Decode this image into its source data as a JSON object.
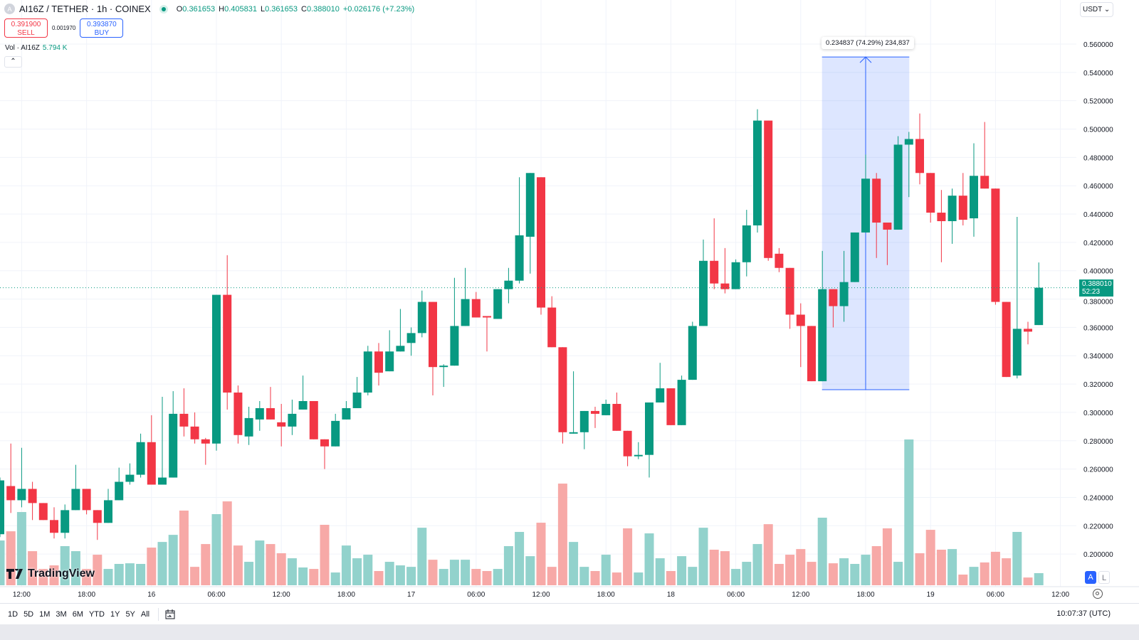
{
  "header": {
    "logo_letter": "A",
    "title": "AI16Z / TETHER · 1h · COINEX",
    "o_label": "O",
    "o": "0.361653",
    "h_label": "H",
    "h": "0.405831",
    "l_label": "L",
    "l": "0.361653",
    "c_label": "C",
    "c": "0.388010",
    "change": "+0.026176 (+7.23%)"
  },
  "trade": {
    "sell_price": "0.391900",
    "sell_label": "SELL",
    "spread": "0.001970",
    "buy_price": "0.393870",
    "buy_label": "BUY"
  },
  "volume_legend": {
    "label": "Vol · AI16Z",
    "value": "5.794 K"
  },
  "collapse_icon": "chevron-up-icon",
  "collapse_glyph": "⌃",
  "currency": {
    "value": "USDT",
    "glyph": "⌄"
  },
  "price_label": {
    "value": "0.388010",
    "countdown": "52:23"
  },
  "measure": {
    "text": "0.234837 (74.29%) 234,837"
  },
  "brand": "TradingView",
  "scale_buttons": {
    "auto": "A",
    "log": "L"
  },
  "ranges": [
    "1D",
    "5D",
    "1M",
    "3M",
    "6M",
    "YTD",
    "1Y",
    "5Y",
    "All"
  ],
  "clock": "10:07:37 (UTC)",
  "colors": {
    "up": "#089981",
    "down": "#f23645",
    "vol_up": "#92d2cc",
    "vol_down": "#f7a9a7",
    "measure": "#2962ff"
  },
  "chart_data": {
    "type": "candlestick",
    "title": "AI16Z / TETHER · 1h · COINEX",
    "ylim": [
      0.2,
      0.56
    ],
    "yticks": [
      "0.560000",
      "0.540000",
      "0.520000",
      "0.500000",
      "0.480000",
      "0.460000",
      "0.440000",
      "0.420000",
      "0.400000",
      "0.380000",
      "0.360000",
      "0.340000",
      "0.320000",
      "0.300000",
      "0.280000",
      "0.260000",
      "0.240000",
      "0.220000",
      "0.200000"
    ],
    "xticks": [
      {
        "i": 2,
        "label": "12:00"
      },
      {
        "i": 8,
        "label": "18:00"
      },
      {
        "i": 14,
        "label": "16"
      },
      {
        "i": 20,
        "label": "06:00"
      },
      {
        "i": 26,
        "label": "12:00"
      },
      {
        "i": 32,
        "label": "18:00"
      },
      {
        "i": 38,
        "label": "17"
      },
      {
        "i": 44,
        "label": "06:00"
      },
      {
        "i": 50,
        "label": "12:00"
      },
      {
        "i": 56,
        "label": "18:00"
      },
      {
        "i": 62,
        "label": "18"
      },
      {
        "i": 68,
        "label": "06:00"
      },
      {
        "i": 74,
        "label": "12:00"
      },
      {
        "i": 80,
        "label": "18:00"
      },
      {
        "i": 86,
        "label": "19"
      },
      {
        "i": 92,
        "label": "06:00"
      },
      {
        "i": 98,
        "label": "12:00"
      }
    ],
    "ohlc_fields": [
      "open",
      "high",
      "low",
      "close"
    ],
    "candles": [
      [
        0.214,
        0.254,
        0.212,
        0.252
      ],
      [
        0.248,
        0.278,
        0.229,
        0.238
      ],
      [
        0.238,
        0.275,
        0.233,
        0.246
      ],
      [
        0.246,
        0.251,
        0.224,
        0.236
      ],
      [
        0.236,
        0.236,
        0.224,
        0.224
      ],
      [
        0.224,
        0.233,
        0.211,
        0.215
      ],
      [
        0.215,
        0.235,
        0.211,
        0.231
      ],
      [
        0.231,
        0.263,
        0.231,
        0.246
      ],
      [
        0.246,
        0.246,
        0.228,
        0.231
      ],
      [
        0.231,
        0.231,
        0.21,
        0.222
      ],
      [
        0.222,
        0.246,
        0.222,
        0.238
      ],
      [
        0.238,
        0.261,
        0.238,
        0.251
      ],
      [
        0.251,
        0.264,
        0.249,
        0.256
      ],
      [
        0.256,
        0.285,
        0.254,
        0.279
      ],
      [
        0.279,
        0.298,
        0.249,
        0.249
      ],
      [
        0.249,
        0.311,
        0.249,
        0.254
      ],
      [
        0.254,
        0.315,
        0.254,
        0.299
      ],
      [
        0.299,
        0.317,
        0.283,
        0.29
      ],
      [
        0.29,
        0.3,
        0.278,
        0.281
      ],
      [
        0.281,
        0.282,
        0.263,
        0.278
      ],
      [
        0.278,
        0.383,
        0.273,
        0.383
      ],
      [
        0.383,
        0.411,
        0.302,
        0.314
      ],
      [
        0.314,
        0.319,
        0.278,
        0.284
      ],
      [
        0.283,
        0.304,
        0.277,
        0.296
      ],
      [
        0.295,
        0.308,
        0.287,
        0.303
      ],
      [
        0.303,
        0.318,
        0.295,
        0.295
      ],
      [
        0.293,
        0.306,
        0.276,
        0.29
      ],
      [
        0.29,
        0.309,
        0.284,
        0.299
      ],
      [
        0.302,
        0.326,
        0.302,
        0.308
      ],
      [
        0.308,
        0.308,
        0.281,
        0.281
      ],
      [
        0.281,
        0.281,
        0.26,
        0.276
      ],
      [
        0.276,
        0.299,
        0.276,
        0.294
      ],
      [
        0.295,
        0.308,
        0.295,
        0.303
      ],
      [
        0.303,
        0.325,
        0.303,
        0.314
      ],
      [
        0.314,
        0.347,
        0.312,
        0.343
      ],
      [
        0.343,
        0.349,
        0.319,
        0.328
      ],
      [
        0.329,
        0.358,
        0.329,
        0.343
      ],
      [
        0.343,
        0.373,
        0.343,
        0.347
      ],
      [
        0.349,
        0.36,
        0.34,
        0.356
      ],
      [
        0.356,
        0.386,
        0.353,
        0.378
      ],
      [
        0.378,
        0.378,
        0.312,
        0.332
      ],
      [
        0.332,
        0.334,
        0.318,
        0.333
      ],
      [
        0.333,
        0.395,
        0.333,
        0.361
      ],
      [
        0.361,
        0.402,
        0.361,
        0.38
      ],
      [
        0.38,
        0.385,
        0.367,
        0.367
      ],
      [
        0.368,
        0.368,
        0.343,
        0.367
      ],
      [
        0.366,
        0.387,
        0.366,
        0.387
      ],
      [
        0.387,
        0.402,
        0.377,
        0.393
      ],
      [
        0.393,
        0.466,
        0.391,
        0.425
      ],
      [
        0.424,
        0.469,
        0.398,
        0.469
      ],
      [
        0.466,
        0.466,
        0.369,
        0.374
      ],
      [
        0.374,
        0.382,
        0.346,
        0.346
      ],
      [
        0.346,
        0.346,
        0.278,
        0.286
      ],
      [
        0.285,
        0.329,
        0.285,
        0.286
      ],
      [
        0.286,
        0.301,
        0.274,
        0.301
      ],
      [
        0.301,
        0.304,
        0.289,
        0.299
      ],
      [
        0.298,
        0.309,
        0.298,
        0.306
      ],
      [
        0.306,
        0.314,
        0.287,
        0.287
      ],
      [
        0.287,
        0.287,
        0.262,
        0.269
      ],
      [
        0.269,
        0.279,
        0.267,
        0.27
      ],
      [
        0.27,
        0.307,
        0.254,
        0.307
      ],
      [
        0.307,
        0.335,
        0.307,
        0.317
      ],
      [
        0.317,
        0.317,
        0.291,
        0.291
      ],
      [
        0.291,
        0.326,
        0.291,
        0.323
      ],
      [
        0.323,
        0.364,
        0.323,
        0.361
      ],
      [
        0.361,
        0.422,
        0.361,
        0.407
      ],
      [
        0.407,
        0.437,
        0.387,
        0.391
      ],
      [
        0.391,
        0.416,
        0.384,
        0.387
      ],
      [
        0.387,
        0.408,
        0.387,
        0.406
      ],
      [
        0.406,
        0.443,
        0.396,
        0.432
      ],
      [
        0.432,
        0.514,
        0.427,
        0.506
      ],
      [
        0.506,
        0.506,
        0.407,
        0.409
      ],
      [
        0.412,
        0.416,
        0.399,
        0.402
      ],
      [
        0.402,
        0.402,
        0.359,
        0.369
      ],
      [
        0.369,
        0.377,
        0.332,
        0.361
      ],
      [
        0.361,
        0.361,
        0.322,
        0.322
      ],
      [
        0.322,
        0.414,
        0.322,
        0.387
      ],
      [
        0.387,
        0.387,
        0.36,
        0.375
      ],
      [
        0.375,
        0.414,
        0.364,
        0.392
      ],
      [
        0.392,
        0.427,
        0.392,
        0.427
      ],
      [
        0.427,
        0.482,
        0.427,
        0.465
      ],
      [
        0.465,
        0.469,
        0.409,
        0.434
      ],
      [
        0.434,
        0.434,
        0.404,
        0.429
      ],
      [
        0.429,
        0.495,
        0.429,
        0.489
      ],
      [
        0.489,
        0.498,
        0.452,
        0.493
      ],
      [
        0.493,
        0.511,
        0.461,
        0.469
      ],
      [
        0.469,
        0.469,
        0.434,
        0.441
      ],
      [
        0.441,
        0.457,
        0.406,
        0.435
      ],
      [
        0.435,
        0.458,
        0.419,
        0.453
      ],
      [
        0.453,
        0.469,
        0.432,
        0.436
      ],
      [
        0.437,
        0.49,
        0.424,
        0.467
      ],
      [
        0.467,
        0.505,
        0.458,
        0.458
      ],
      [
        0.458,
        0.458,
        0.376,
        0.378
      ],
      [
        0.378,
        0.378,
        0.325,
        0.325
      ],
      [
        0.326,
        0.438,
        0.324,
        0.359
      ],
      [
        0.359,
        0.364,
        0.348,
        0.357
      ],
      [
        0.361653,
        0.405831,
        0.361653,
        0.38801
      ]
    ],
    "volume_unit": "K",
    "volumes": [
      21.4,
      25.8,
      35.0,
      16.3,
      7.8,
      9.5,
      18.7,
      16.3,
      7.8,
      14.6,
      7.8,
      10.2,
      10.5,
      10.2,
      18.0,
      20.7,
      24.1,
      35.7,
      8.8,
      19.7,
      34.0,
      40.1,
      19.0,
      11.2,
      21.4,
      19.7,
      15.3,
      12.9,
      8.5,
      7.8,
      28.9,
      6.1,
      19.0,
      12.9,
      14.6,
      6.8,
      11.2,
      9.5,
      8.8,
      27.5,
      12.2,
      7.8,
      12.2,
      12.2,
      7.8,
      6.8,
      7.8,
      18.7,
      25.5,
      13.9,
      29.9,
      8.8,
      48.6,
      20.7,
      8.8,
      6.8,
      14.6,
      6.1,
      27.2,
      6.1,
      24.8,
      12.9,
      6.8,
      13.9,
      8.8,
      27.5,
      17.0,
      16.3,
      7.8,
      11.2,
      19.7,
      29.2,
      10.2,
      14.6,
      17.3,
      11.2,
      32.3,
      10.5,
      12.9,
      10.2,
      14.6,
      18.7,
      27.2,
      11.2,
      69.7,
      15.3,
      26.5,
      17.0,
      17.3,
      5.1,
      8.8,
      10.9,
      16.0,
      12.9,
      25.5,
      3.7,
      5.794
    ],
    "current_price": 0.38801,
    "measure_range": {
      "from_index": 76,
      "to_index": 84,
      "from_price": 0.316,
      "to_price": 0.5509
    }
  }
}
